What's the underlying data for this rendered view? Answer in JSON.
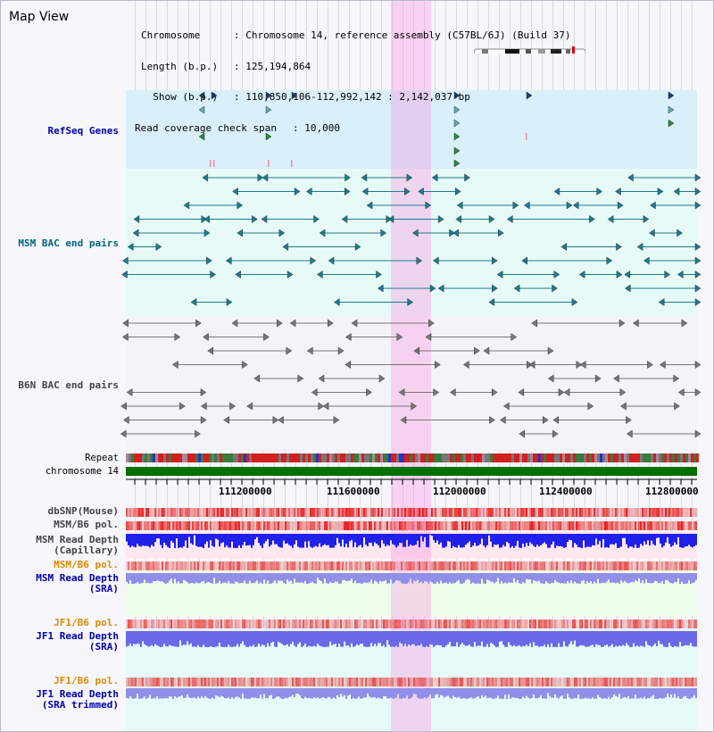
{
  "view_title": "Map View",
  "info": {
    "chromosome_key": "Chromosome",
    "chromosome_val": ": Chromosome 14, reference assembly (C57BL/6J) (Build 37)",
    "length_key": "Length (b.p.)",
    "length_val": ": 125,194,864",
    "show_key": "  Show (b.p.)",
    "show_val": ": 110,850,106-112,992,142 : 2,142,037 bp",
    "coverage_key": "Read coverage check span",
    "coverage_val": ": 10,000"
  },
  "tracks": {
    "refseq": "RefSeq Genes",
    "msm_bac": "MSM BAC end pairs",
    "b6n_bac": "B6N BAC end pairs",
    "repeat": "Repeat",
    "chromosome": "chromosome 14",
    "dbsnp": "dbSNP(Mouse)",
    "msm_b6_pol": "MSM/B6 pol.",
    "msm_depth_cap_1": "MSM Read Depth",
    "msm_depth_cap_2": "(Capillary)",
    "msm_b6_pol_sra": "MSM/B6 pol.",
    "msm_depth_sra_1": "MSM Read Depth",
    "msm_depth_sra_2": "(SRA)",
    "jf1_b6_pol": "JF1/B6 pol.",
    "jf1_depth_1": "JF1 Read Depth",
    "jf1_depth_2": "(SRA)",
    "jf1_b6_pol_trim": "JF1/B6 pol.",
    "jf1_depth_trim_1": "JF1 Read Depth",
    "jf1_depth_trim_2": "(SRA trimmed)"
  },
  "axis_ticks": [
    "111200000",
    "111600000",
    "112000000",
    "112400000",
    "112800000"
  ],
  "colors": {
    "refseq": "#0000aa",
    "msm_bac": "#006680",
    "orange": "#e08a00",
    "blue": "#0000cc",
    "chromosome_bar": "#007000"
  }
}
